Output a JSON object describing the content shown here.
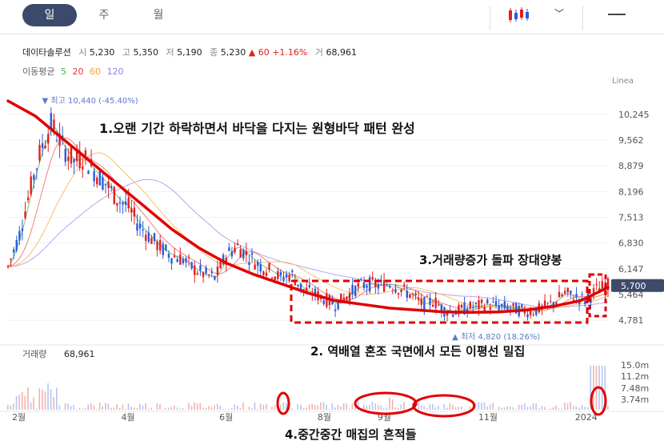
{
  "tabs": [
    {
      "label": "일"
    },
    {
      "label": "주"
    },
    {
      "label": "월"
    }
  ],
  "stock": {
    "name": "데이타솔루션",
    "open_label": "시",
    "open": "5,230",
    "high_label": "고",
    "high": "5,350",
    "low_label": "저",
    "low": "5,190",
    "close_label": "종",
    "close": "5,230",
    "change": "▲ 60",
    "change_pct": "+1.16%",
    "volume_label": "거",
    "volume": "68,961"
  },
  "ma_legend": {
    "label": "이동평균",
    "periods": [
      "5",
      "20",
      "60",
      "120"
    ],
    "colors": [
      "#4caf50",
      "#e53935",
      "#f5a623",
      "#9b7be0"
    ]
  },
  "colors": {
    "up": "#e02020",
    "down": "#2a5cd8",
    "annotation": "#e00000"
  },
  "chart_data": {
    "type": "candlestick",
    "scale_label": "Linea",
    "y_ticks": [
      10245,
      9562,
      8879,
      8196,
      7513,
      6830,
      6147,
      5464,
      4781
    ],
    "y_tick_labels": [
      "10,245",
      "9,562",
      "8,879",
      "8,196",
      "7,513",
      "6,830",
      "6,147",
      "5,464",
      "4,781"
    ],
    "ylim": [
      4400,
      10900
    ],
    "x_ticks": [
      "2월",
      "4월",
      "6월",
      "8월",
      "9월",
      "11월",
      "2024"
    ],
    "x_tick_pos": [
      0.02,
      0.22,
      0.4,
      0.58,
      0.69,
      0.88,
      1.06
    ],
    "current_price_label": "5,700",
    "current_price": 5700,
    "high": {
      "label": "▼ 최고 10,440 (-45.40%)",
      "value": 10440,
      "t": 0.08
    },
    "low": {
      "label": "▲ 최저 4,820 (18.26%)",
      "value": 4820,
      "t": 0.82
    },
    "price_path": [
      [
        0.0,
        6200
      ],
      [
        0.02,
        7000
      ],
      [
        0.04,
        8200
      ],
      [
        0.06,
        9300
      ],
      [
        0.08,
        10000
      ],
      [
        0.1,
        9400
      ],
      [
        0.12,
        9000
      ],
      [
        0.14,
        9100
      ],
      [
        0.16,
        8700
      ],
      [
        0.18,
        8400
      ],
      [
        0.2,
        8000
      ],
      [
        0.22,
        7800
      ],
      [
        0.24,
        7300
      ],
      [
        0.26,
        7000
      ],
      [
        0.28,
        6700
      ],
      [
        0.3,
        6500
      ],
      [
        0.32,
        6400
      ],
      [
        0.34,
        6150
      ],
      [
        0.36,
        6000
      ],
      [
        0.38,
        5900
      ],
      [
        0.4,
        6500
      ],
      [
        0.42,
        6750
      ],
      [
        0.44,
        6500
      ],
      [
        0.46,
        6250
      ],
      [
        0.48,
        6100
      ],
      [
        0.5,
        5900
      ],
      [
        0.52,
        6000
      ],
      [
        0.54,
        5600
      ],
      [
        0.56,
        5500
      ],
      [
        0.58,
        5350
      ],
      [
        0.6,
        5200
      ],
      [
        0.62,
        5400
      ],
      [
        0.64,
        5650
      ],
      [
        0.66,
        5750
      ],
      [
        0.68,
        5700
      ],
      [
        0.7,
        5750
      ],
      [
        0.72,
        5600
      ],
      [
        0.74,
        5450
      ],
      [
        0.76,
        5200
      ],
      [
        0.78,
        5300
      ],
      [
        0.8,
        5050
      ],
      [
        0.82,
        5000
      ],
      [
        0.84,
        5100
      ],
      [
        0.86,
        5150
      ],
      [
        0.88,
        5200
      ],
      [
        0.9,
        5150
      ],
      [
        0.92,
        5100
      ],
      [
        0.94,
        5050
      ],
      [
        0.96,
        5000
      ],
      [
        0.98,
        5100
      ],
      [
        1.0,
        5250
      ],
      [
        1.02,
        5500
      ],
      [
        1.04,
        5400
      ],
      [
        1.06,
        5300
      ],
      [
        1.08,
        5600
      ],
      [
        1.1,
        5700
      ]
    ],
    "trend_curve": [
      [
        0.0,
        10600
      ],
      [
        0.05,
        10200
      ],
      [
        0.1,
        9600
      ],
      [
        0.15,
        9000
      ],
      [
        0.2,
        8400
      ],
      [
        0.25,
        7800
      ],
      [
        0.3,
        7200
      ],
      [
        0.35,
        6700
      ],
      [
        0.4,
        6300
      ],
      [
        0.45,
        6000
      ],
      [
        0.5,
        5750
      ],
      [
        0.55,
        5500
      ],
      [
        0.6,
        5300
      ],
      [
        0.65,
        5200
      ],
      [
        0.7,
        5100
      ],
      [
        0.75,
        5050
      ],
      [
        0.8,
        5000
      ],
      [
        0.85,
        4990
      ],
      [
        0.9,
        5000
      ],
      [
        0.95,
        5050
      ],
      [
        1.0,
        5150
      ],
      [
        1.05,
        5300
      ],
      [
        1.1,
        5650
      ]
    ],
    "volume": {
      "label": "거래량",
      "value": "68,961",
      "y_tick_labels": [
        "15.0m",
        "11.2m",
        "7.48m",
        "3.74m"
      ]
    },
    "annotations": [
      "1.오랜 기간 하락하면서 바닥을 다지는 원형바닥 패턴 완성",
      "3.거래량증가 돌파 장대양봉",
      "2. 역배열 혼조 국면에서 모든 이평선 밀집",
      "4.중간중간 매집의 흔적들"
    ]
  }
}
